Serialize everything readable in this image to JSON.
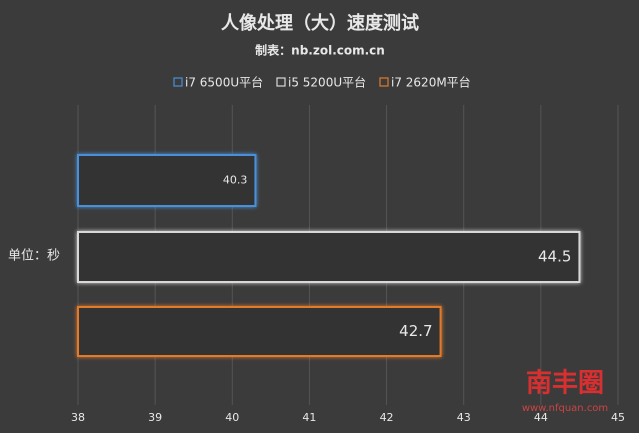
{
  "chart_data": {
    "type": "bar",
    "orientation": "horizontal",
    "title": "人像处理（大）速度测试",
    "subtitle": "制表：nb.zol.com.cn",
    "y_label": "单位：秒",
    "categories": [
      null
    ],
    "series": [
      {
        "name": "i7 6500U平台",
        "color": "#4a90d9",
        "values": [
          40.3
        ]
      },
      {
        "name": "i5 5200U平台",
        "color": "#d8d8d8",
        "values": [
          44.5
        ]
      },
      {
        "name": "i7 2620M平台",
        "color": "#e07b2c",
        "values": [
          42.7
        ]
      }
    ],
    "xlim": [
      38,
      45
    ],
    "xticks": [
      38,
      39,
      40,
      41,
      42,
      43,
      44,
      45
    ],
    "grid": true
  },
  "watermark": {
    "title": "南丰圈",
    "url": "www.nfquan.com"
  }
}
